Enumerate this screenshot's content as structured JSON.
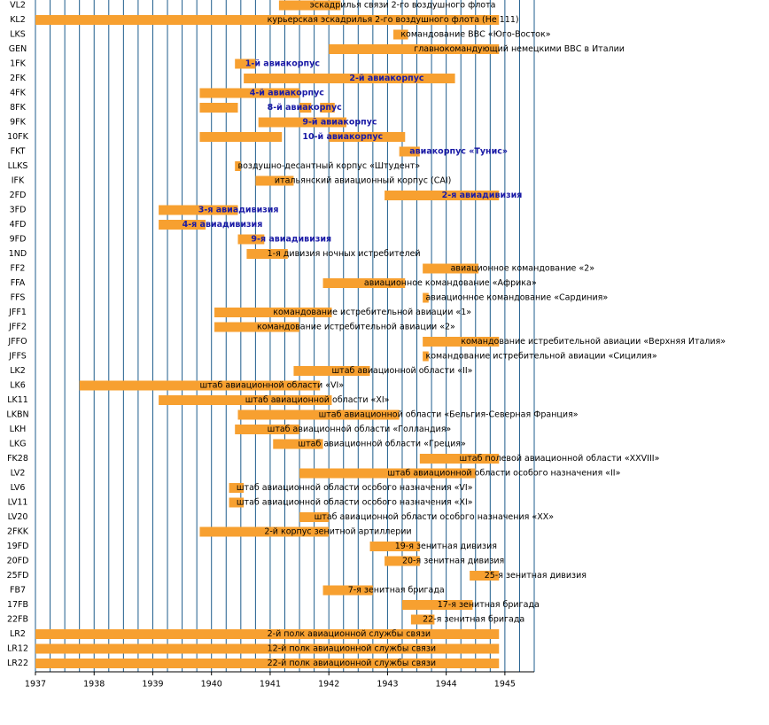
{
  "chart_data": {
    "type": "gantt",
    "xlim": [
      1937,
      1945.5
    ],
    "xticks": [
      1937,
      1938,
      1939,
      1940,
      1941,
      1942,
      1943,
      1944,
      1945
    ],
    "grid_step": 0.25,
    "color": "#f7a030",
    "rows": [
      {
        "name": "VL2",
        "label": "эскадрилья связи 2-го воздушного флота",
        "label_color": "#000000",
        "spans": [
          [
            1941.15,
            1942.2
          ]
        ]
      },
      {
        "name": "KL2",
        "label": "курьерская эскадрилья 2-го воздушного флота (Не 111)",
        "label_color": "#000000",
        "spans": [
          [
            1937,
            1944.9
          ]
        ]
      },
      {
        "name": "LKS",
        "label": "командование ВВС «Юго-Восток»",
        "label_color": "#000000",
        "spans": [
          [
            1943.1,
            1943.35
          ]
        ]
      },
      {
        "name": "GEN",
        "label": "главнокомандующий немецкими ВВС в Италии",
        "label_color": "#000000",
        "spans": [
          [
            1942.0,
            1944.9
          ]
        ]
      },
      {
        "name": "1FK",
        "label": "1-й авиакорпус",
        "label_color": "#1a1aa6",
        "spans": [
          [
            1940.4,
            1940.75
          ]
        ]
      },
      {
        "name": "2FK",
        "label": "2-й авиакорпус",
        "label_color": "#1a1aa6",
        "spans": [
          [
            1940.55,
            1944.15
          ]
        ]
      },
      {
        "name": "4FK",
        "label": "4-й авиакорпус",
        "label_color": "#1a1aa6",
        "spans": [
          [
            1939.8,
            1941.5
          ]
        ]
      },
      {
        "name": "8FK",
        "label": "8-й авиакорпус",
        "label_color": "#1a1aa6",
        "spans": [
          [
            1939.8,
            1940.45
          ],
          [
            1941.5,
            1941.7
          ],
          [
            1941.85,
            1942.1
          ]
        ]
      },
      {
        "name": "9FK",
        "label": "9-й авиакорпус",
        "label_color": "#1a1aa6",
        "spans": [
          [
            1940.8,
            1942.3
          ]
        ]
      },
      {
        "name": "10FK",
        "label": "10-й авиакорпус",
        "label_color": "#1a1aa6",
        "spans": [
          [
            1939.8,
            1941.2
          ],
          [
            1942.0,
            1943.3
          ]
        ]
      },
      {
        "name": "FKT",
        "label": "авиакорпус «Тунис»",
        "label_color": "#1a1aa6",
        "spans": [
          [
            1943.2,
            1943.55
          ]
        ]
      },
      {
        "name": "LLKS",
        "label": "воздушно-десантный корпус «Штудент»",
        "label_color": "#000000",
        "spans": [
          [
            1940.4,
            1940.5
          ]
        ]
      },
      {
        "name": "IFK",
        "label": "итальянский авиационный корпус (CAI)",
        "label_color": "#000000",
        "spans": [
          [
            1940.75,
            1941.4
          ]
        ]
      },
      {
        "name": "2FD",
        "label": "2-я авиадивизия",
        "label_color": "#1a1aa6",
        "spans": [
          [
            1942.95,
            1944.9
          ]
        ]
      },
      {
        "name": "3FD",
        "label": "3-я авиадивизия",
        "label_color": "#1a1aa6",
        "spans": [
          [
            1939.1,
            1940.45
          ]
        ]
      },
      {
        "name": "4FD",
        "label": "4-я авиадивизия",
        "label_color": "#1a1aa6",
        "spans": [
          [
            1939.1,
            1939.9
          ]
        ]
      },
      {
        "name": "9FD",
        "label": "9-я авиадивизия",
        "label_color": "#1a1aa6",
        "spans": [
          [
            1940.45,
            1940.9
          ]
        ]
      },
      {
        "name": "1ND",
        "label": "1-я дивизия ночных истребителей",
        "label_color": "#000000",
        "spans": [
          [
            1940.6,
            1941.3
          ]
        ]
      },
      {
        "name": "FF2",
        "label": "авиационное командование «2»",
        "label_color": "#000000",
        "spans": [
          [
            1943.6,
            1944.55
          ]
        ]
      },
      {
        "name": "FFA",
        "label": "авиационное командование «Африка»",
        "label_color": "#000000",
        "spans": [
          [
            1941.9,
            1943.3
          ]
        ]
      },
      {
        "name": "FFS",
        "label": "авиационное командование «Сардиния»",
        "label_color": "#000000",
        "spans": [
          [
            1943.6,
            1943.7
          ]
        ]
      },
      {
        "name": "JFF1",
        "label": "командование истребительной авиации «1»",
        "label_color": "#000000",
        "spans": [
          [
            1940.05,
            1942.05
          ]
        ]
      },
      {
        "name": "JFF2",
        "label": "командование истребительной авиации «2»",
        "label_color": "#000000",
        "spans": [
          [
            1940.05,
            1941.5
          ]
        ]
      },
      {
        "name": "JFFO",
        "label": "командование истребительной авиации «Верхняя Италия»",
        "label_color": "#000000",
        "spans": [
          [
            1943.6,
            1944.9
          ]
        ]
      },
      {
        "name": "JFFS",
        "label": "командование истребительной авиации «Сицилия»",
        "label_color": "#000000",
        "spans": [
          [
            1943.6,
            1943.7
          ]
        ]
      },
      {
        "name": "LK2",
        "label": "штаб авиационной области «II»",
        "label_color": "#000000",
        "spans": [
          [
            1941.4,
            1942.7
          ]
        ]
      },
      {
        "name": "LK6",
        "label": "штаб авиационной области «VI»",
        "label_color": "#000000",
        "spans": [
          [
            1937.75,
            1941.85
          ]
        ]
      },
      {
        "name": "LK11",
        "label": "штаб авиационной области «XI»",
        "label_color": "#000000",
        "spans": [
          [
            1939.1,
            1942.05
          ]
        ]
      },
      {
        "name": "LKBN",
        "label": "штаб авиационной области «Бельгия-Северная Франция»",
        "label_color": "#000000",
        "spans": [
          [
            1940.45,
            1943.2
          ]
        ]
      },
      {
        "name": "LKH",
        "label": "штаб авиационной области «Голландия»",
        "label_color": "#000000",
        "spans": [
          [
            1940.4,
            1941.5
          ]
        ]
      },
      {
        "name": "LKG",
        "label": "штаб авиационной области «Греция»",
        "label_color": "#000000",
        "spans": [
          [
            1941.05,
            1941.9
          ]
        ]
      },
      {
        "name": "FK28",
        "label": "штаб полевой авиационной области «XXVIII»",
        "label_color": "#000000",
        "spans": [
          [
            1943.55,
            1944.9
          ]
        ]
      },
      {
        "name": "LV2",
        "label": "штаб авиационной области особого назначения «II»",
        "label_color": "#000000",
        "spans": [
          [
            1941.5,
            1944.5
          ]
        ]
      },
      {
        "name": "LV6",
        "label": "штаб авиационной области особого назначения «VI»",
        "label_color": "#000000",
        "spans": [
          [
            1940.3,
            1940.55
          ]
        ]
      },
      {
        "name": "LV11",
        "label": "штаб авиационной области особого назначения «XI»",
        "label_color": "#000000",
        "spans": [
          [
            1940.3,
            1940.55
          ]
        ]
      },
      {
        "name": "LV20",
        "label": "штаб авиационной области особого назначения «XX»",
        "label_color": "#000000",
        "spans": [
          [
            1941.5,
            1942.0
          ]
        ]
      },
      {
        "name": "2FKK",
        "label": "2-й корпус зенитной артиллерии",
        "label_color": "#000000",
        "spans": [
          [
            1939.8,
            1942.0
          ]
        ]
      },
      {
        "name": "19FD",
        "label": "19-я зенитная дивизия",
        "label_color": "#000000",
        "spans": [
          [
            1942.7,
            1943.55
          ]
        ]
      },
      {
        "name": "20FD",
        "label": "20-я зенитная дивизия",
        "label_color": "#000000",
        "spans": [
          [
            1942.95,
            1943.55
          ]
        ]
      },
      {
        "name": "25FD",
        "label": "25-я зенитная дивизия",
        "label_color": "#000000",
        "spans": [
          [
            1944.4,
            1944.9
          ]
        ]
      },
      {
        "name": "FB7",
        "label": "7-я зенитная бригада",
        "label_color": "#000000",
        "spans": [
          [
            1941.9,
            1942.75
          ]
        ]
      },
      {
        "name": "17FB",
        "label": "17-я зенитная бригада",
        "label_color": "#000000",
        "spans": [
          [
            1943.25,
            1944.45
          ]
        ]
      },
      {
        "name": "22FB",
        "label": "22-я зенитная бригада",
        "label_color": "#000000",
        "spans": [
          [
            1943.4,
            1943.8
          ]
        ]
      },
      {
        "name": "LR2",
        "label": "2-й полк авиационной службы связи",
        "label_color": "#000000",
        "spans": [
          [
            1937,
            1944.9
          ]
        ]
      },
      {
        "name": "LR12",
        "label": "12-й полк авиационной службы связи",
        "label_color": "#000000",
        "spans": [
          [
            1937,
            1944.9
          ]
        ]
      },
      {
        "name": "LR22",
        "label": "22-й полк авиационной службы связи",
        "label_color": "#000000",
        "spans": [
          [
            1937,
            1944.9
          ]
        ]
      }
    ]
  }
}
